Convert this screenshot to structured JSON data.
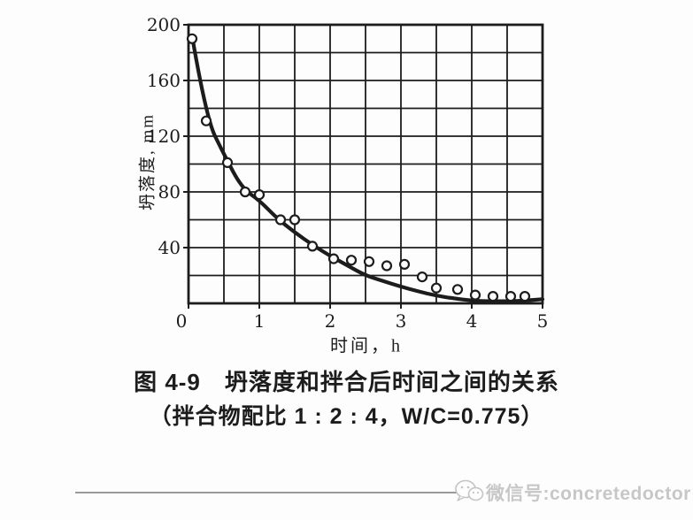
{
  "page": {
    "background": "#fdfdfd",
    "ink": "#1c1c1c",
    "paper": "#fdfdfd"
  },
  "figure": {
    "caption_line1": "图 4-9　坍落度和拌合后时间之间的关系",
    "caption_line2": "（拌合物配比 1 : 2 : 4，W/C=0.775）"
  },
  "watermark": {
    "icon": "wechat-icon",
    "label": "微信号:concretedoctor",
    "text_color": "#c7c7c7",
    "line_color": "#9a9a9a"
  },
  "chart_data": {
    "type": "scatter",
    "title": "",
    "xlabel": "时间，h",
    "ylabel": "坍落度, mm",
    "xlim": [
      0,
      5
    ],
    "ylim": [
      0,
      200
    ],
    "x_ticks": [
      0,
      1,
      2,
      3,
      4,
      5
    ],
    "y_ticks": [
      40,
      80,
      120,
      160,
      200
    ],
    "x_grid_step": 0.5,
    "y_grid_step": 20,
    "grid": true,
    "legend": "none",
    "series": [
      {
        "name": "measured-slump-points",
        "type": "scatter",
        "marker": "open-circle",
        "points": [
          [
            0.05,
            190
          ],
          [
            0.25,
            131
          ],
          [
            0.55,
            101
          ],
          [
            0.8,
            80
          ],
          [
            1.0,
            78
          ],
          [
            1.3,
            60
          ],
          [
            1.5,
            60
          ],
          [
            1.75,
            41
          ],
          [
            2.05,
            32
          ],
          [
            2.3,
            31
          ],
          [
            2.55,
            30
          ],
          [
            2.8,
            27
          ],
          [
            3.05,
            28
          ],
          [
            3.3,
            19
          ],
          [
            3.5,
            11
          ],
          [
            3.8,
            10
          ],
          [
            4.05,
            6
          ],
          [
            4.3,
            5
          ],
          [
            4.55,
            5
          ],
          [
            4.75,
            5
          ]
        ]
      },
      {
        "name": "fitted-decay-curve",
        "type": "line",
        "points": [
          [
            0.05,
            192
          ],
          [
            0.25,
            133
          ],
          [
            0.5,
            107
          ],
          [
            0.75,
            83
          ],
          [
            1.0,
            74
          ],
          [
            1.25,
            61
          ],
          [
            1.5,
            51
          ],
          [
            1.75,
            42
          ],
          [
            2.0,
            34
          ],
          [
            2.25,
            27
          ],
          [
            2.5,
            20
          ],
          [
            2.75,
            16
          ],
          [
            3.0,
            12
          ],
          [
            3.25,
            8.5
          ],
          [
            3.5,
            5.5
          ],
          [
            3.75,
            3.5
          ],
          [
            4.0,
            2
          ],
          [
            4.25,
            1.5
          ],
          [
            4.5,
            1.5
          ],
          [
            4.75,
            2
          ],
          [
            5.0,
            3
          ]
        ]
      }
    ]
  }
}
